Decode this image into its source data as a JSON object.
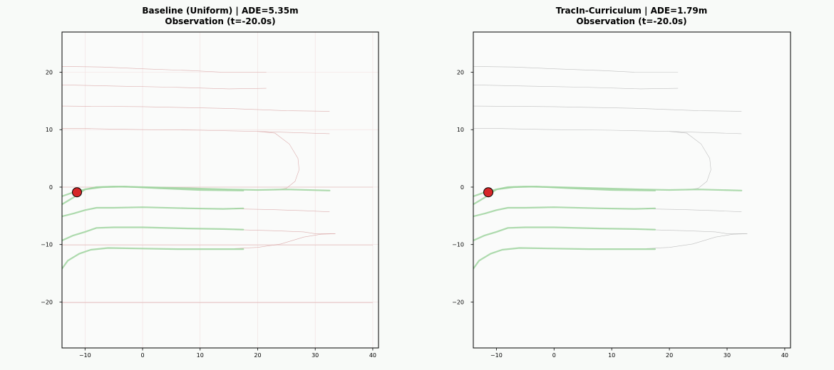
{
  "chart_data": [
    {
      "type": "line",
      "title": "Baseline (Uniform) | ADE=5.35m",
      "subtitle": "Observation (t=-20.0s)",
      "xlabel": "",
      "ylabel": "",
      "xlim": [
        -14,
        41
      ],
      "ylim": [
        -28,
        27
      ],
      "xticks": [
        -10,
        0,
        10,
        20,
        30,
        40
      ],
      "yticks": [
        -20,
        -10,
        0,
        10,
        20
      ],
      "xtick_labels": [
        "−10",
        "0",
        "10",
        "20",
        "30",
        "40"
      ],
      "ytick_labels": [
        "−20",
        "−10",
        "0",
        "10",
        "20"
      ],
      "grid": true,
      "colors": {
        "road": "#d9a5a5",
        "history": "#9fd39f",
        "agent": "#d62728"
      },
      "road_lines": [
        {
          "name": "",
          "x": [
            -14,
            -7,
            0,
            8,
            14,
            21.5
          ],
          "y": [
            21,
            20.9,
            20.6,
            20.3,
            20.0,
            20.0
          ]
        },
        {
          "name": "",
          "x": [
            -14,
            -5,
            5,
            15,
            21.5
          ],
          "y": [
            17.8,
            17.6,
            17.4,
            17.1,
            17.2
          ]
        },
        {
          "name": "",
          "x": [
            -14,
            0,
            15,
            25,
            32.5
          ],
          "y": [
            14.1,
            14.0,
            13.7,
            13.3,
            13.2
          ]
        },
        {
          "name": "",
          "x": [
            -14,
            -10,
            0,
            10,
            20,
            32.5
          ],
          "y": [
            10.2,
            10.2,
            10.0,
            9.9,
            9.7,
            9.3
          ]
        },
        {
          "name": "",
          "x": [
            20,
            23,
            25.5,
            27,
            27.2,
            26.5,
            25,
            23
          ],
          "y": [
            9.7,
            9.4,
            7.5,
            5.0,
            3.0,
            1.0,
            -0.2,
            -0.5
          ]
        },
        {
          "name": "",
          "x": [
            16,
            22,
            28,
            32.5
          ],
          "y": [
            -3.8,
            -3.9,
            -4.1,
            -4.3
          ]
        },
        {
          "name": "",
          "x": [
            16,
            23,
            28,
            30,
            33.5
          ],
          "y": [
            -7.4,
            -7.6,
            -7.8,
            -8.1,
            -8.1
          ]
        },
        {
          "name": "",
          "x": [
            16,
            20,
            24,
            28,
            31,
            33.5
          ],
          "y": [
            -10.7,
            -10.5,
            -9.9,
            -8.7,
            -8.2,
            -8.1
          ]
        },
        {
          "name": "",
          "x": [
            -14,
            0,
            10,
            20,
            40
          ],
          "y": [
            0,
            0,
            0,
            0,
            0
          ]
        },
        {
          "name": "",
          "x": [
            -14,
            0,
            10,
            20,
            40
          ],
          "y": [
            -10.1,
            -10.1,
            -10.1,
            -10.1,
            -10.1
          ]
        },
        {
          "name": "",
          "x": [
            -14,
            0,
            20,
            40
          ],
          "y": [
            -20.1,
            -20.1,
            -20.1,
            -20.1
          ]
        }
      ],
      "history_lines": [
        {
          "name": "",
          "x": [
            -14,
            -12,
            -10,
            -8,
            -5,
            0,
            8,
            15,
            20,
            25,
            32.5
          ],
          "y": [
            -1.6,
            -0.9,
            -0.4,
            0.0,
            0.1,
            0.0,
            -0.2,
            -0.4,
            -0.5,
            -0.4,
            -0.6
          ]
        },
        {
          "name": "",
          "x": [
            -14,
            -12,
            -10,
            -7,
            -3,
            3,
            10,
            17.5
          ],
          "y": [
            -3.0,
            -1.8,
            -0.4,
            0.0,
            0.1,
            -0.2,
            -0.5,
            -0.6
          ]
        },
        {
          "name": "",
          "x": [
            -14,
            -12,
            -10,
            -8,
            -5,
            0,
            8,
            14,
            17.5
          ],
          "y": [
            -5.1,
            -4.6,
            -4.0,
            -3.6,
            -3.6,
            -3.5,
            -3.7,
            -3.8,
            -3.7
          ]
        },
        {
          "name": "",
          "x": [
            -14,
            -12,
            -10,
            -8,
            -5,
            0,
            8,
            14,
            17.5
          ],
          "y": [
            -9.3,
            -8.4,
            -7.8,
            -7.1,
            -7.0,
            -7.0,
            -7.2,
            -7.3,
            -7.4
          ]
        },
        {
          "name": "",
          "x": [
            -14,
            -13,
            -11,
            -9,
            -6,
            0,
            6,
            12,
            17.5
          ],
          "y": [
            -14.2,
            -12.8,
            -11.6,
            -10.9,
            -10.6,
            -10.7,
            -10.8,
            -10.8,
            -10.8
          ]
        }
      ],
      "agent": {
        "x": -11.4,
        "y": -0.9
      }
    },
    {
      "type": "line",
      "title": "TracIn-Curriculum | ADE=1.79m",
      "subtitle": "Observation (t=-20.0s)",
      "xlabel": "",
      "ylabel": "",
      "xlim": [
        -14,
        41
      ],
      "ylim": [
        -28,
        27
      ],
      "xticks": [
        -10,
        0,
        10,
        20,
        30,
        40
      ],
      "yticks": [
        -20,
        -10,
        0,
        10,
        20
      ],
      "xtick_labels": [
        "−10",
        "0",
        "10",
        "20",
        "30",
        "40"
      ],
      "ytick_labels": [
        "−20",
        "−10",
        "0",
        "10",
        "20"
      ],
      "grid": false,
      "colors": {
        "road": "#b9b9b9",
        "history": "#9fd39f",
        "agent": "#d62728"
      },
      "road_lines": [
        {
          "name": "",
          "x": [
            -14,
            -7,
            0,
            8,
            14,
            21.5
          ],
          "y": [
            21,
            20.9,
            20.6,
            20.3,
            20.0,
            20.0
          ]
        },
        {
          "name": "",
          "x": [
            -14,
            -5,
            5,
            15,
            21.5
          ],
          "y": [
            17.8,
            17.6,
            17.4,
            17.1,
            17.2
          ]
        },
        {
          "name": "",
          "x": [
            -14,
            0,
            15,
            25,
            32.5
          ],
          "y": [
            14.1,
            14.0,
            13.7,
            13.3,
            13.2
          ]
        },
        {
          "name": "",
          "x": [
            -14,
            -10,
            0,
            10,
            20,
            32.5
          ],
          "y": [
            10.2,
            10.2,
            10.0,
            9.9,
            9.7,
            9.3
          ]
        },
        {
          "name": "",
          "x": [
            20,
            23,
            25.5,
            27,
            27.2,
            26.5,
            25,
            23
          ],
          "y": [
            9.7,
            9.4,
            7.5,
            5.0,
            3.0,
            1.0,
            -0.2,
            -0.5
          ]
        },
        {
          "name": "",
          "x": [
            16,
            22,
            28,
            32.5
          ],
          "y": [
            -3.8,
            -3.9,
            -4.1,
            -4.3
          ]
        },
        {
          "name": "",
          "x": [
            16,
            23,
            28,
            30,
            33.5
          ],
          "y": [
            -7.4,
            -7.6,
            -7.8,
            -8.1,
            -8.1
          ]
        },
        {
          "name": "",
          "x": [
            16,
            20,
            24,
            28,
            31,
            33.5
          ],
          "y": [
            -10.7,
            -10.5,
            -9.9,
            -8.7,
            -8.2,
            -8.1
          ]
        }
      ],
      "history_lines": [
        {
          "name": "",
          "x": [
            -14,
            -12,
            -10,
            -8,
            -5,
            0,
            8,
            15,
            20,
            25,
            32.5
          ],
          "y": [
            -1.6,
            -0.9,
            -0.4,
            0.0,
            0.1,
            0.0,
            -0.2,
            -0.4,
            -0.5,
            -0.4,
            -0.6
          ]
        },
        {
          "name": "",
          "x": [
            -14,
            -12,
            -10,
            -7,
            -3,
            3,
            10,
            17.5
          ],
          "y": [
            -3.0,
            -1.8,
            -0.4,
            0.0,
            0.1,
            -0.2,
            -0.5,
            -0.6
          ]
        },
        {
          "name": "",
          "x": [
            -14,
            -12,
            -10,
            -8,
            -5,
            0,
            8,
            14,
            17.5
          ],
          "y": [
            -5.1,
            -4.6,
            -4.0,
            -3.6,
            -3.6,
            -3.5,
            -3.7,
            -3.8,
            -3.7
          ]
        },
        {
          "name": "",
          "x": [
            -14,
            -12,
            -10,
            -8,
            -5,
            0,
            8,
            14,
            17.5
          ],
          "y": [
            -9.3,
            -8.4,
            -7.8,
            -7.1,
            -7.0,
            -7.0,
            -7.2,
            -7.3,
            -7.4
          ]
        },
        {
          "name": "",
          "x": [
            -14,
            -13,
            -11,
            -9,
            -6,
            0,
            6,
            12,
            17.5
          ],
          "y": [
            -14.2,
            -12.8,
            -11.6,
            -10.9,
            -10.6,
            -10.7,
            -10.8,
            -10.8,
            -10.8
          ]
        }
      ],
      "agent": {
        "x": -11.4,
        "y": -0.9
      }
    }
  ]
}
